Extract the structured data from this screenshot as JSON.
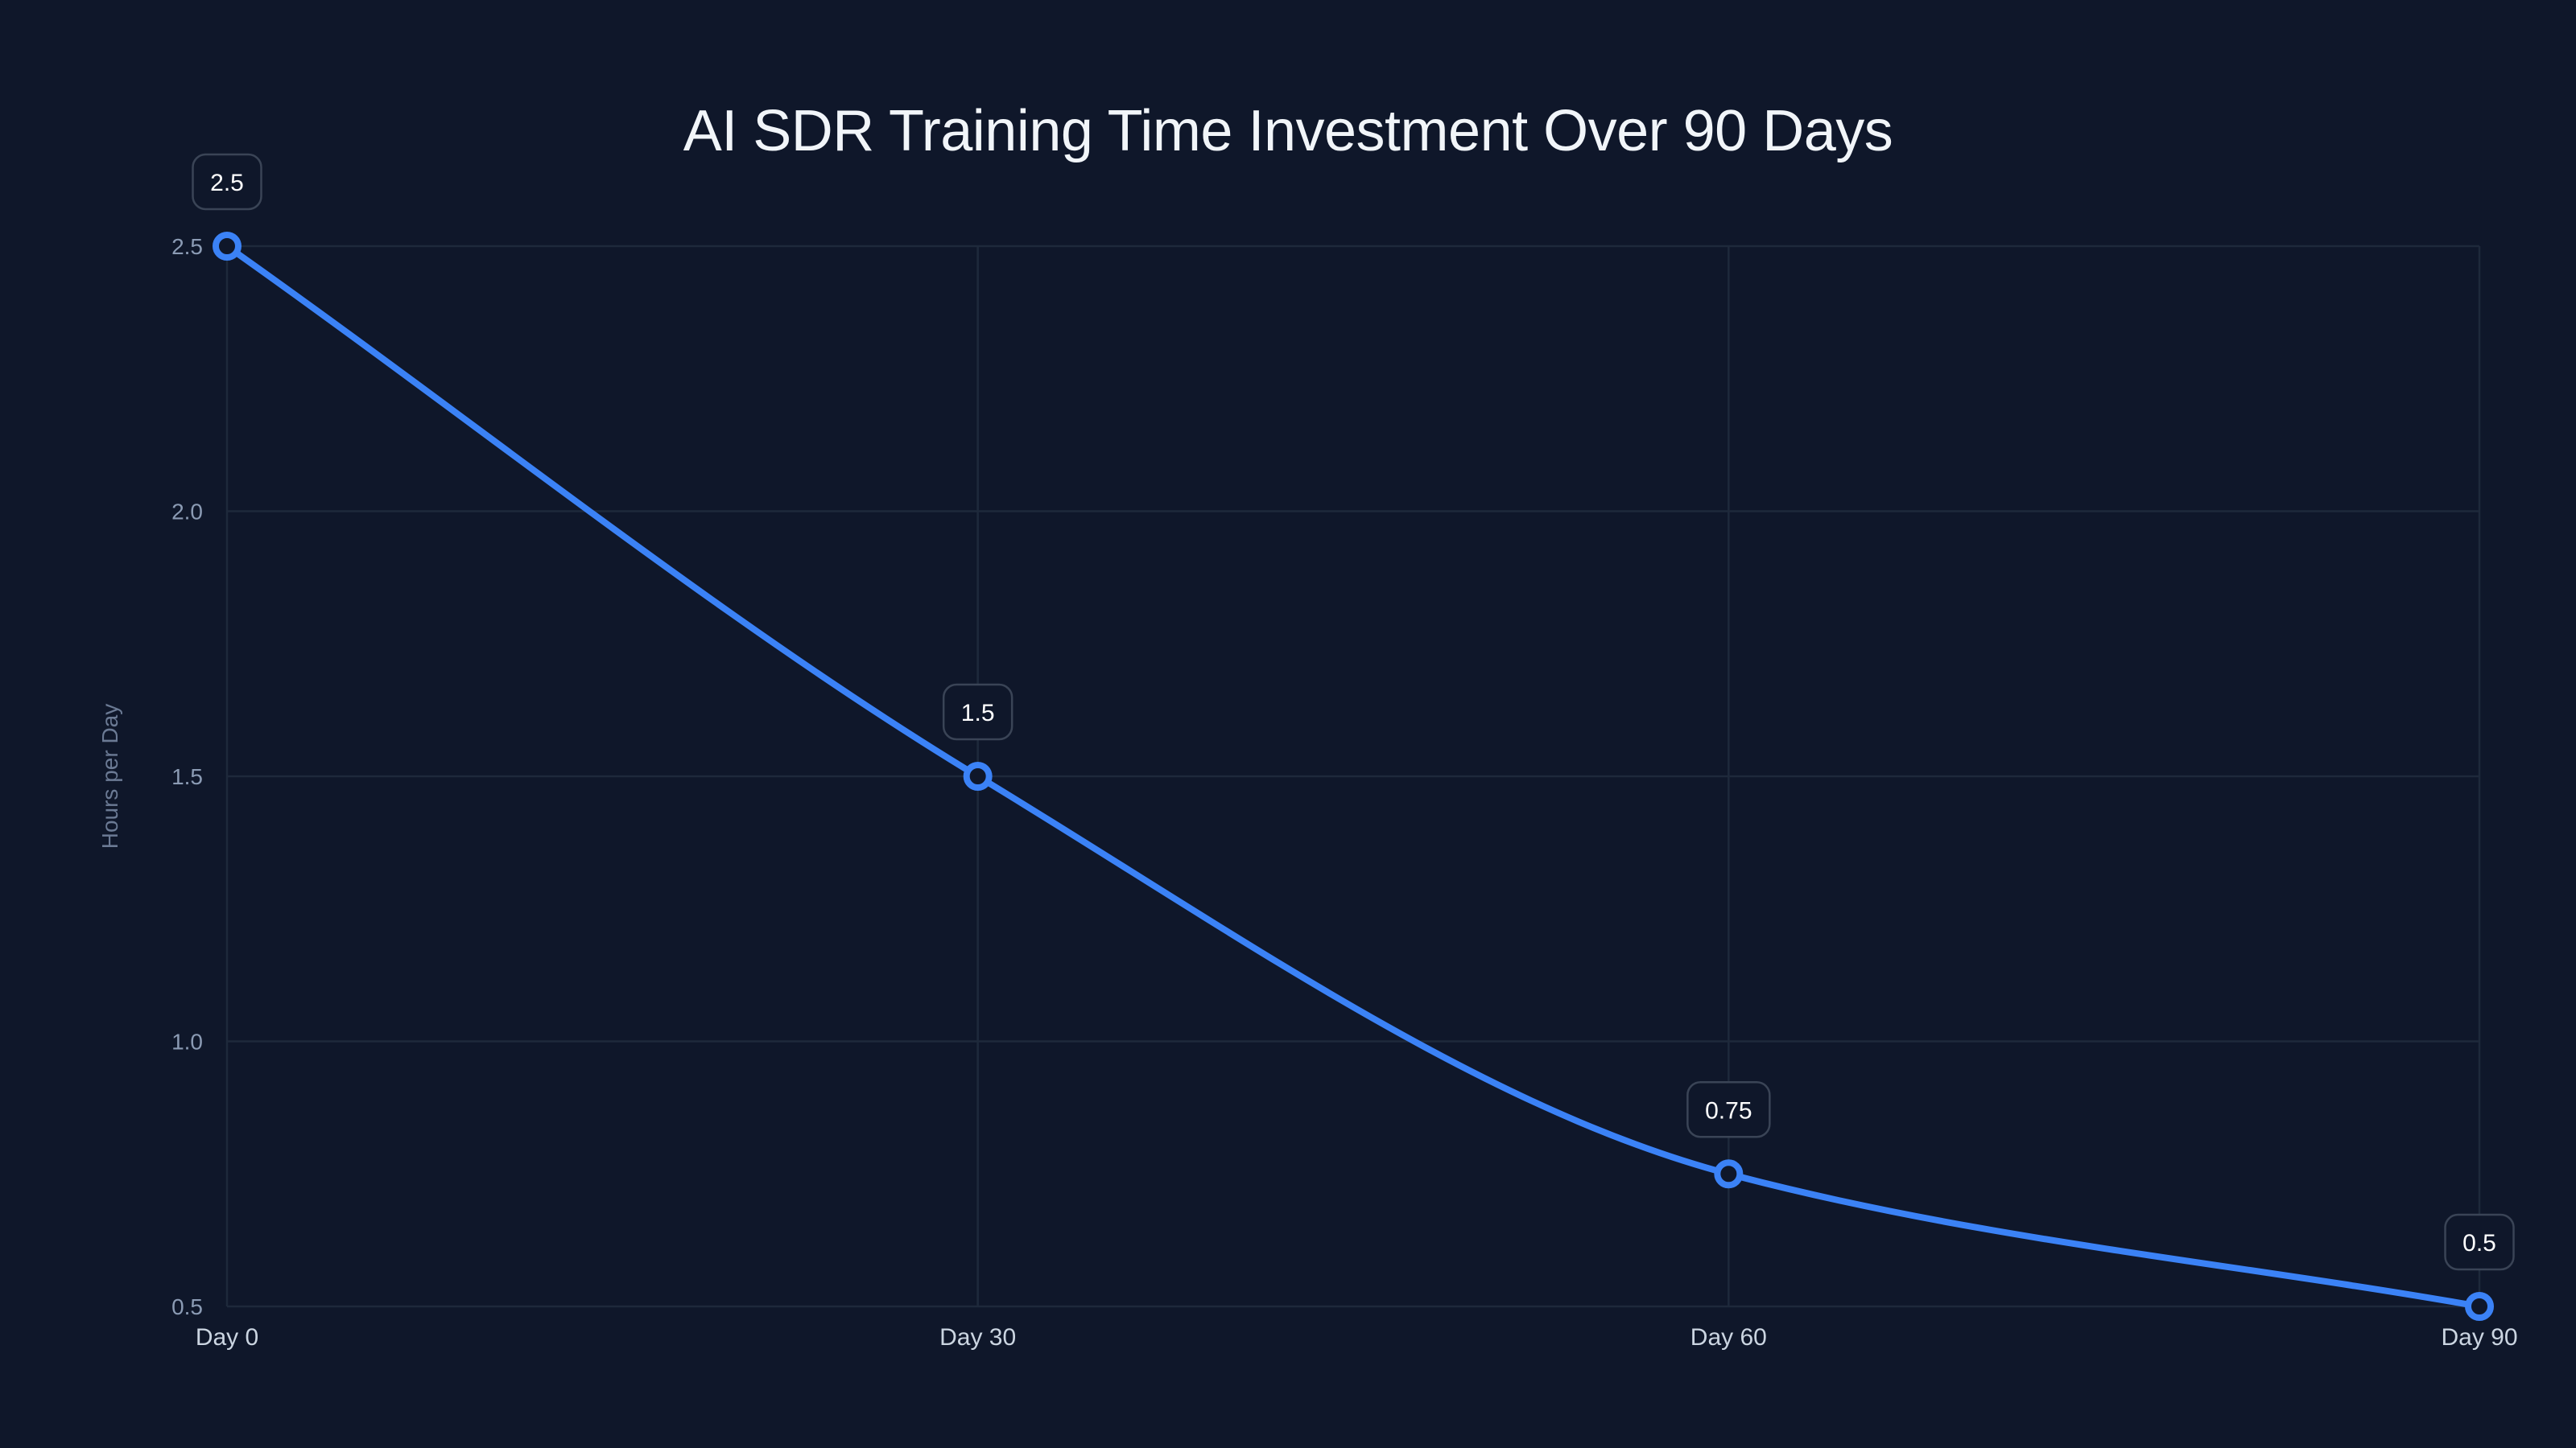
{
  "chart_data": {
    "type": "line",
    "title": "AI SDR Training Time Investment Over 90 Days",
    "xlabel": "",
    "ylabel": "Hours per Day",
    "categories": [
      "Day 0",
      "Day 30",
      "Day 60",
      "Day 90"
    ],
    "series": [
      {
        "name": "Hours per Day",
        "values": [
          2.5,
          1.5,
          0.75,
          0.5
        ],
        "color": "#3b82f6",
        "data_labels": [
          "2.5",
          "1.5",
          "0.75",
          "0.5"
        ]
      }
    ],
    "ylim": [
      0.5,
      2.5
    ],
    "yticks": [
      0.5,
      1.0,
      1.5,
      2.0,
      2.5
    ],
    "ytick_labels": [
      "0.5",
      "1.0",
      "1.5",
      "2.0",
      "2.5"
    ],
    "grid": true,
    "legend": "none",
    "interpolation": "smooth"
  },
  "colors": {
    "background": "#0f172a",
    "line": "#3b82f6",
    "grid": "#1e293b",
    "title": "#f1f5f9"
  }
}
